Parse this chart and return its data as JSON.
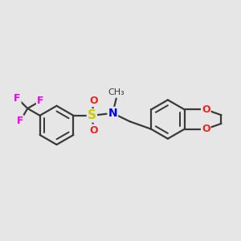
{
  "background_color": "#e6e6e6",
  "bond_color": "#3a3a3a",
  "bond_width": 1.6,
  "atom_colors": {
    "F": "#ee00ee",
    "S": "#cccc00",
    "O": "#ee2222",
    "N": "#0000ee",
    "C": "#3a3a3a"
  },
  "font_size": 10,
  "figsize": [
    3.0,
    3.0
  ],
  "dpi": 100
}
